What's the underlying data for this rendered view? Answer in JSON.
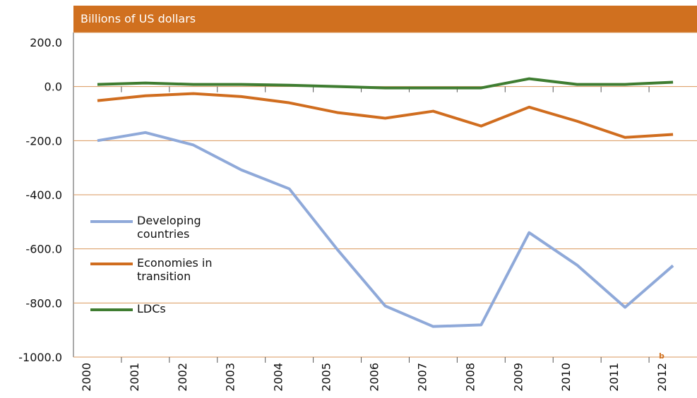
{
  "chart_data": {
    "type": "line",
    "title": "Billions of US dollars",
    "categories": [
      "2000",
      "2001",
      "2002",
      "2003",
      "2004",
      "2005",
      "2006",
      "2007",
      "2008",
      "2009",
      "2010",
      "2011",
      "2012"
    ],
    "annotations": [
      "b"
    ],
    "series": [
      {
        "name": "Developing countries",
        "color": "#8fa9d9",
        "values": [
          -200,
          -170,
          -216,
          -308,
          -378,
          -602,
          -811,
          -887,
          -881,
          -540,
          -660,
          -816,
          -662
        ]
      },
      {
        "name": "Economies in transition",
        "color": "#d06d1f",
        "values": [
          -52,
          -34,
          -26,
          -37,
          -60,
          -96,
          -117,
          -91,
          -146,
          -76,
          -128,
          -188,
          -177
        ]
      },
      {
        "name": "LDCs",
        "color": "#3f7d31",
        "values": [
          8,
          13,
          8,
          8,
          5,
          0,
          -5,
          -5,
          -5,
          29,
          8,
          8,
          16
        ]
      }
    ],
    "ylim": [
      -1000,
      200
    ],
    "yticks": [
      {
        "value": 200,
        "label": "200.0"
      },
      {
        "value": 0,
        "label": "0.0"
      },
      {
        "value": -200,
        "label": "-200.0"
      },
      {
        "value": -400,
        "label": "-400.0"
      },
      {
        "value": -600,
        "label": "-600.0"
      },
      {
        "value": -800,
        "label": "-800.0"
      },
      {
        "value": -1000,
        "label": "-1000.0"
      }
    ],
    "grid": true,
    "legend": "left"
  }
}
